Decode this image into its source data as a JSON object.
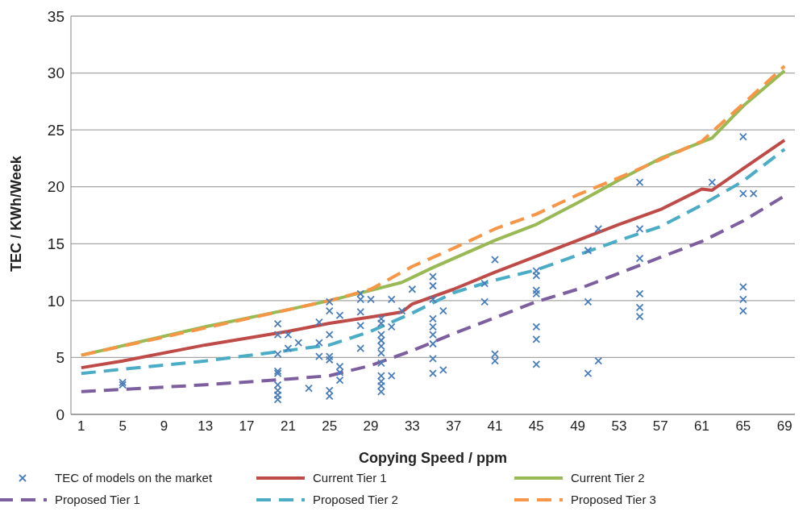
{
  "chart_data": {
    "type": "line",
    "xlabel": "Copying Speed / ppm",
    "ylabel": "TEC / KWh/Week",
    "xlim": [
      0,
      70
    ],
    "xticks": [
      1,
      5,
      9,
      13,
      17,
      21,
      25,
      29,
      33,
      37,
      41,
      45,
      49,
      53,
      57,
      61,
      65,
      69
    ],
    "ylim": [
      0,
      35
    ],
    "yticks": [
      0,
      5,
      10,
      15,
      20,
      25,
      30,
      35
    ],
    "grid": "y",
    "legend": "bottom",
    "series": [
      {
        "name": "TEC of models on the market",
        "type": "scatter",
        "color": "#4a7ebb",
        "marker": "cross",
        "x": [
          5,
          5,
          20,
          20,
          20,
          20,
          20,
          20,
          20,
          20,
          20,
          21,
          21,
          22,
          23,
          24,
          24,
          24,
          25,
          25,
          25,
          25,
          25,
          25,
          25,
          26,
          26,
          26,
          26,
          28,
          28,
          28,
          28,
          28,
          29,
          30,
          30,
          30,
          30,
          30,
          30,
          30,
          30,
          30,
          30,
          30,
          31,
          31,
          31,
          32,
          33,
          35,
          35,
          35,
          35,
          35,
          35,
          35,
          35,
          35,
          36,
          36,
          40,
          40,
          41,
          41,
          41,
          45,
          45,
          45,
          45,
          45,
          45,
          45,
          50,
          50,
          50,
          51,
          51,
          55,
          55,
          55,
          55,
          55,
          55,
          62,
          65,
          65,
          65,
          65,
          65,
          66
        ],
        "values": [
          2.6,
          2.8,
          7.96,
          7.0,
          5.3,
          3.8,
          3.6,
          2.6,
          2.1,
          1.7,
          1.3,
          7.0,
          5.8,
          6.3,
          2.3,
          8.1,
          6.3,
          5.1,
          9.9,
          9.1,
          7.0,
          5.1,
          4.8,
          2.1,
          1.6,
          8.7,
          4.2,
          3.7,
          3.0,
          10.6,
          10.1,
          9.0,
          7.8,
          5.8,
          10.1,
          8.4,
          8.0,
          7.0,
          6.5,
          6.0,
          5.4,
          4.5,
          3.4,
          2.9,
          2.5,
          2.0,
          10.1,
          7.7,
          3.4,
          9.1,
          11.0,
          12.1,
          11.3,
          10.1,
          8.4,
          7.7,
          7.0,
          6.2,
          4.9,
          3.6,
          9.1,
          3.9,
          11.5,
          9.9,
          13.6,
          5.3,
          4.7,
          12.6,
          12.2,
          10.9,
          10.6,
          7.7,
          6.6,
          4.4,
          14.4,
          9.9,
          3.6,
          16.3,
          4.7,
          20.4,
          16.3,
          13.7,
          10.6,
          9.4,
          8.6,
          20.4,
          24.4,
          19.4,
          11.2,
          10.1,
          9.1,
          19.4
        ]
      },
      {
        "name": "Current Tier 1",
        "color": "#be4b48",
        "marker": "none",
        "line_style": "solid",
        "x": [
          1,
          5,
          13,
          21,
          25,
          30,
          32,
          33,
          37,
          41,
          45,
          49,
          53,
          57,
          61,
          62,
          65,
          69
        ],
        "values": [
          4.1,
          4.7,
          6.1,
          7.3,
          8.0,
          8.7,
          9.0,
          9.7,
          11.0,
          12.5,
          13.9,
          15.3,
          16.7,
          18.0,
          19.8,
          19.7,
          21.6,
          24.1
        ]
      },
      {
        "name": "Current Tier 2",
        "color": "#98b954",
        "marker": "none",
        "line_style": "solid",
        "x": [
          1,
          13,
          21,
          25,
          29,
          32,
          35,
          41,
          45,
          49,
          53,
          57,
          62,
          65,
          69
        ],
        "values": [
          5.2,
          7.7,
          9.2,
          10.0,
          10.9,
          11.6,
          12.9,
          15.3,
          16.7,
          18.6,
          20.6,
          22.5,
          24.3,
          27.1,
          30.2
        ]
      },
      {
        "name": "Proposed Tier 1",
        "color": "#7d5fa0",
        "marker": "none",
        "line_style": "dashed",
        "x": [
          1,
          13,
          21,
          25,
          29,
          33,
          37,
          41,
          45,
          49,
          53,
          57,
          61,
          65,
          69
        ],
        "values": [
          2.0,
          2.6,
          3.1,
          3.4,
          4.3,
          5.6,
          7.1,
          8.5,
          9.9,
          11.0,
          12.4,
          13.8,
          15.2,
          17.0,
          19.2
        ]
      },
      {
        "name": "Proposed Tier 2",
        "color": "#4bacc6",
        "marker": "none",
        "line_style": "dashed",
        "x": [
          1,
          13,
          20,
          25,
          29,
          33,
          37,
          41,
          45,
          49,
          53,
          57,
          61,
          65,
          69
        ],
        "values": [
          3.6,
          4.7,
          5.5,
          6.1,
          7.3,
          8.9,
          10.7,
          11.8,
          12.7,
          14.0,
          15.3,
          16.5,
          18.4,
          20.5,
          23.3
        ]
      },
      {
        "name": "Proposed Tier 3",
        "color": "#f79646",
        "marker": "none",
        "line_style": "dashed",
        "x": [
          1,
          25,
          29,
          33,
          37,
          41,
          45,
          49,
          53,
          57,
          61,
          65,
          69
        ],
        "values": [
          5.2,
          10.0,
          11.0,
          13.0,
          14.6,
          16.3,
          17.6,
          19.3,
          20.8,
          22.4,
          24.0,
          27.3,
          30.6
        ]
      }
    ]
  }
}
